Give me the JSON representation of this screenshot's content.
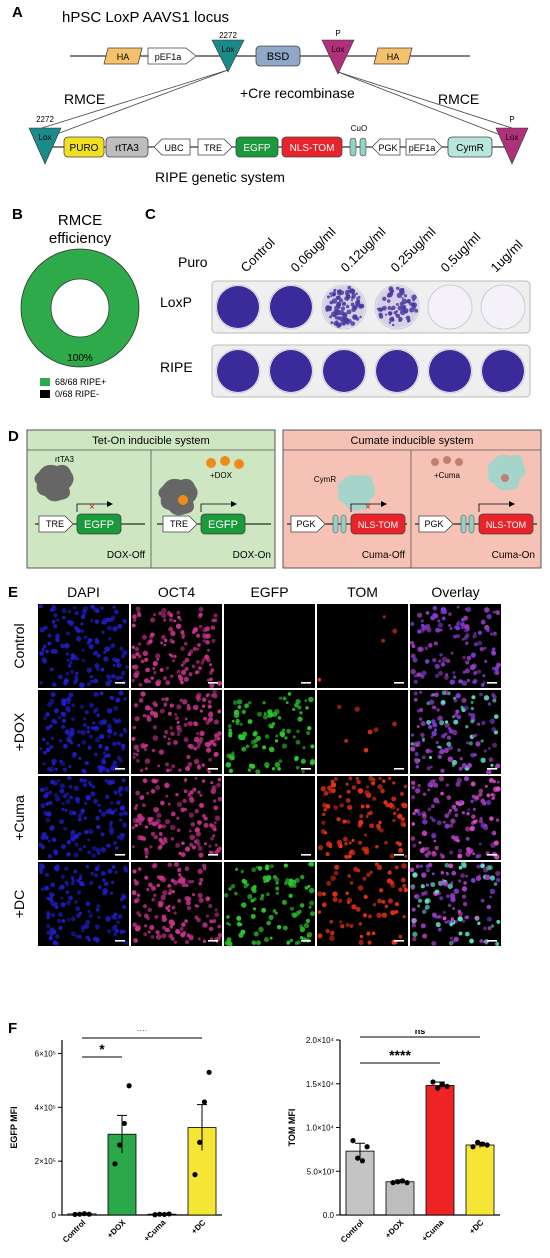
{
  "panels": {
    "A": {
      "letter": "A",
      "title": "hPSC LoxP AAVS1 locus",
      "top_construct": [
        {
          "label": "HA",
          "kind": "ha"
        },
        {
          "label": "pEF1a",
          "kind": "promoter"
        },
        {
          "label": "Lox",
          "kind": "lox-down",
          "number": "2272"
        },
        {
          "label": "BSD",
          "kind": "bsd"
        },
        {
          "label": "Lox",
          "kind": "lox-down-magenta",
          "number": "P"
        },
        {
          "label": "HA",
          "kind": "ha"
        }
      ],
      "cre_label": "+Cre recombinase",
      "rmce_left": "RMCE",
      "rmce_right": "RMCE",
      "bottom_construct": [
        {
          "label": "Lox",
          "number": "2272"
        },
        {
          "label": "PURO"
        },
        {
          "label": "rtTA3"
        },
        {
          "label": "UBC"
        },
        {
          "label": "TRE"
        },
        {
          "label": "EGFP"
        },
        {
          "label": "NLS-TOM"
        },
        {
          "label": "CuO"
        },
        {
          "label": "PGK"
        },
        {
          "label": "pEF1a"
        },
        {
          "label": "CymR"
        },
        {
          "label": "Lox",
          "number": "P"
        }
      ],
      "system_label": "RIPE genetic system"
    },
    "B": {
      "letter": "B",
      "title_line1": "RMCE",
      "title_line2": "efficiency",
      "center_label": "100%",
      "legend": [
        {
          "label": "68/68 RIPE+",
          "color": "#2eaa4a"
        },
        {
          "label": "0/68 RIPE-",
          "color": "#000000"
        }
      ]
    },
    "C": {
      "letter": "C",
      "puro_label": "Puro",
      "concentrations": [
        "Control",
        "0.06ug/ml",
        "0.12ug/ml",
        "0.25ug/ml",
        "0.5ug/ml",
        "1ug/ml"
      ],
      "rows": [
        {
          "label": "LoxP",
          "stain": [
            1.0,
            0.95,
            0.7,
            0.45,
            0.03,
            0.02
          ]
        },
        {
          "label": "RIPE",
          "stain": [
            1.0,
            1.0,
            1.0,
            1.0,
            1.0,
            1.0
          ]
        }
      ]
    },
    "D": {
      "letter": "D",
      "tet_title": "Tet-On inducible system",
      "cumate_title": "Cumate inducible system",
      "tet_off": {
        "protein": "rtTA3",
        "promoter": "TRE",
        "gene": "EGFP",
        "state": "DOX-Off"
      },
      "tet_on": {
        "drug": "+DOX",
        "promoter": "TRE",
        "gene": "EGFP",
        "state": "DOX-On"
      },
      "cuma_off": {
        "protein": "CymR",
        "promoter": "PGK",
        "gene": "NLS-TOM",
        "state": "Cuma-Off"
      },
      "cuma_on": {
        "drug": "+Cuma",
        "promoter": "PGK",
        "gene": "NLS-TOM",
        "state": "Cuma-On"
      }
    },
    "E": {
      "letter": "E",
      "columns": [
        "DAPI",
        "OCT4",
        "EGFP",
        "TOM",
        "Overlay"
      ],
      "rows": [
        "Control",
        "+DOX",
        "+Cuma",
        "+DC"
      ]
    },
    "F": {
      "letter": "F",
      "chart_data": [
        {
          "type": "bar",
          "ylabel": "EGFP MFI",
          "categories": [
            "Control",
            "+DOX",
            "+Cuma",
            "+DC"
          ],
          "values": [
            4000,
            300000,
            3000,
            325000
          ],
          "errors": [
            2000,
            70000,
            1500,
            85000
          ],
          "points": [
            [
              2000,
              3000,
              5000,
              3000
            ],
            [
              190000,
              260000,
              340000,
              480000
            ],
            [
              1000,
              3000,
              2000,
              4000
            ],
            [
              150000,
              270000,
              420000,
              530000
            ]
          ],
          "colors": [
            "#b8b8b8",
            "#2aa84a",
            "#d0d0d0",
            "#f5e534"
          ],
          "yticks": [
            "0",
            "2×10⁵",
            "4×10⁵",
            "6×10⁵"
          ],
          "ytick_values": [
            0,
            200000,
            400000,
            600000
          ],
          "ylim": [
            0,
            650000
          ],
          "significance": [
            {
              "from": 0,
              "to": 1,
              "label": "*"
            },
            {
              "from": 0,
              "to": 3,
              "label": "**"
            }
          ]
        },
        {
          "type": "bar",
          "ylabel": "TOM MFI",
          "categories": [
            "Control",
            "+DOX",
            "+Cuma",
            "+DC"
          ],
          "values": [
            7300,
            3800,
            14800,
            8000
          ],
          "errors": [
            900,
            200,
            400,
            300
          ],
          "points": [
            [
              8500,
              6500,
              6200,
              7800
            ],
            [
              3700,
              3800,
              3900,
              3700
            ],
            [
              15200,
              14500,
              14900,
              14700
            ],
            [
              7800,
              8300,
              8100,
              8000
            ]
          ],
          "colors": [
            "#c4c4c4",
            "#bdbdbd",
            "#ee2424",
            "#f5e534"
          ],
          "yticks": [
            "0.0",
            "5.0×10³",
            "1.0×10⁴",
            "1.5×10⁴",
            "2.0×10⁴"
          ],
          "ytick_values": [
            0,
            5000,
            10000,
            15000,
            20000
          ],
          "ylim": [
            0,
            20000
          ],
          "significance": [
            {
              "from": 0,
              "to": 3,
              "label": "ns"
            },
            {
              "from": 0,
              "to": 2,
              "label": "****"
            }
          ]
        }
      ]
    }
  },
  "colors": {
    "ha": "#f5c26b",
    "lox_teal": "#1a8a8a",
    "lox_magenta": "#b0307a",
    "bsd": "#8fa8c8",
    "puro": "#f0e020",
    "rtta3": "#bdbdbd",
    "egfp": "#1a9a3a",
    "nls_tom": "#e8232a",
    "cuo": "#8fd3c4",
    "cymr": "#b8e6dc",
    "tet_bg": "#cfe6c2",
    "cuma_bg": "#f7c2b6",
    "dapi": "#1e1ec8",
    "oct4": "#c8328c",
    "egfp_cell": "#2ec82e",
    "tom_cell": "#e83216",
    "overlay": "#8c3cc8"
  }
}
